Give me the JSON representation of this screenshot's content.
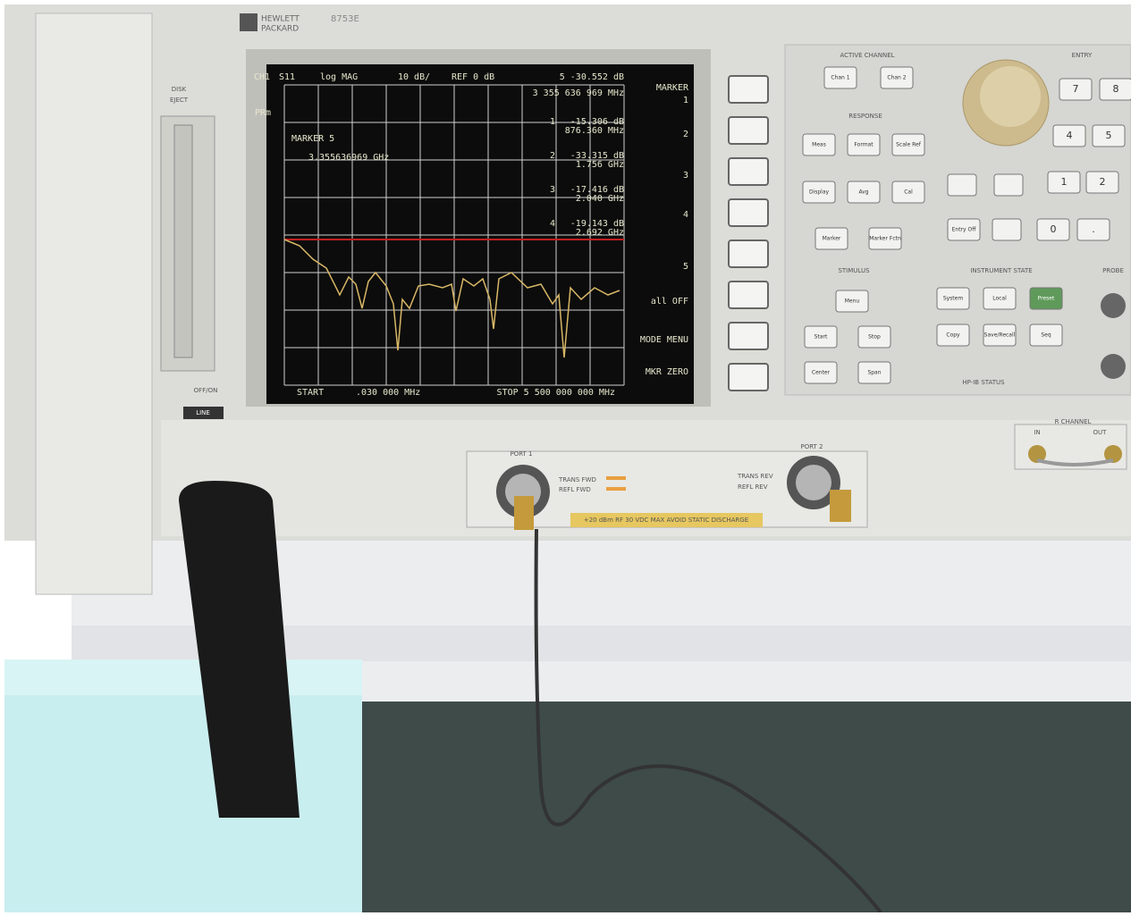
{
  "brand": {
    "maker": [
      "HEWLETT",
      "PACKARD"
    ],
    "model": "8753E"
  },
  "disk": [
    "DISK",
    "EJECT"
  ],
  "power": "OFF/ON",
  "line": "LINE",
  "screen": {
    "header": [
      "CH1",
      "S11",
      "log MAG",
      "10 dB/",
      "REF 0 dB",
      "5 -30.552 dB"
    ],
    "freq": "3 355 636 969 MHz",
    "prm": "PRm",
    "marker_title": "MARKER 5",
    "marker_value": "3.355636969 GHz",
    "markers": [
      {
        "id": "1",
        "level": "-15.306 dB",
        "freq": "876.360 MHz"
      },
      {
        "id": "2",
        "level": "-33.315 dB",
        "freq": "1.756 GHz"
      },
      {
        "id": "3",
        "level": "-17.416 dB",
        "freq": "2.040 GHz"
      },
      {
        "id": "4",
        "level": "-19.143 dB",
        "freq": "2.692 GHz"
      }
    ],
    "start": "START",
    "start_value": ".030 000 MHz",
    "stop": "STOP 5 500 000 000 MHz"
  },
  "softkeys": [
    "MARKER",
    "1",
    "2",
    "3",
    "4",
    "5",
    "all OFF",
    "MODE MENU",
    "MKR ZERO"
  ],
  "sections": [
    "ACTIVE CHANNEL",
    "ENTRY",
    "RESPONSE",
    "STIMULUS",
    "INSTRUMENT STATE",
    "PROBE",
    "HP-IB STATUS",
    "R CHANNEL"
  ],
  "buttons": [
    "Chan 1",
    "Chan 2",
    "Meas",
    "Format",
    "Scale Ref",
    "Display",
    "Avg",
    "Cal",
    "Marker",
    "Marker Fctn",
    "Menu",
    "Start",
    "Stop",
    "Center",
    "Span",
    "System",
    "Local",
    "Preset",
    "Copy",
    "Save/Recall",
    "Seq",
    "Entry Off",
    "7",
    "8",
    "4",
    "5",
    "1",
    "2",
    "0",
    "."
  ],
  "ports": {
    "port1": "PORT 1",
    "port2": "PORT 2",
    "fwd": [
      "TRANS FWD",
      "REFL FWD"
    ],
    "rev": [
      "TRANS REV",
      "REFL REV"
    ],
    "warning": "+20 dBm RF   30 VDC MAX   AVOID STATIC DISCHARGE",
    "r_in": "IN",
    "r_out": "OUT"
  }
}
